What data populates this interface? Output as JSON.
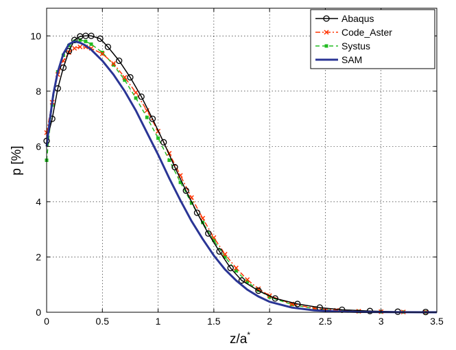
{
  "chart_data": {
    "type": "line",
    "xlabel": "z/a",
    "xlabel_superscript": "*",
    "ylabel": "p [%]",
    "xlim": [
      0,
      3.5
    ],
    "ylim": [
      0,
      11
    ],
    "xticks": [
      0,
      0.5,
      1,
      1.5,
      2,
      2.5,
      3,
      3.5
    ],
    "yticks": [
      0,
      2,
      4,
      6,
      8,
      10
    ],
    "grid": true,
    "legend_position": "top-right",
    "series": [
      {
        "name": "Abaqus",
        "color": "#000000",
        "marker": "circle",
        "line": "solid",
        "x": [
          0,
          0.05,
          0.1,
          0.15,
          0.2,
          0.25,
          0.3,
          0.35,
          0.4,
          0.48,
          0.55,
          0.65,
          0.75,
          0.85,
          0.95,
          1.05,
          1.15,
          1.25,
          1.35,
          1.45,
          1.55,
          1.65,
          1.75,
          1.9,
          2.05,
          2.25,
          2.45,
          2.65,
          2.9,
          3.15,
          3.4
        ],
        "y": [
          6.2,
          7.0,
          8.1,
          8.85,
          9.45,
          9.85,
          9.98,
          10.0,
          10.0,
          9.9,
          9.6,
          9.1,
          8.5,
          7.8,
          7.0,
          6.15,
          5.25,
          4.4,
          3.6,
          2.85,
          2.2,
          1.6,
          1.15,
          0.78,
          0.5,
          0.3,
          0.17,
          0.09,
          0.045,
          0.02,
          0.01
        ]
      },
      {
        "name": "Code_Aster",
        "color": "#ff3300",
        "marker": "x",
        "line": "dash-dot",
        "x": [
          0,
          0.05,
          0.1,
          0.15,
          0.2,
          0.25,
          0.3,
          0.35,
          0.4,
          0.5,
          0.6,
          0.7,
          0.8,
          0.9,
          1.0,
          1.1,
          1.2,
          1.3,
          1.4,
          1.5,
          1.6,
          1.7,
          1.8,
          1.9,
          2.0,
          2.2,
          2.4,
          2.6,
          2.8,
          3.0,
          3.2,
          3.4
        ],
        "y": [
          6.5,
          7.6,
          8.6,
          9.1,
          9.4,
          9.55,
          9.6,
          9.6,
          9.55,
          9.35,
          9.0,
          8.5,
          7.95,
          7.3,
          6.55,
          5.75,
          4.95,
          4.15,
          3.4,
          2.7,
          2.1,
          1.6,
          1.18,
          0.85,
          0.6,
          0.3,
          0.14,
          0.07,
          0.035,
          0.02,
          0.01,
          0.005
        ]
      },
      {
        "name": "Systus",
        "color": "#22bb22",
        "marker": "square",
        "line": "dashed",
        "x": [
          0,
          0.05,
          0.1,
          0.15,
          0.2,
          0.25,
          0.3,
          0.35,
          0.4,
          0.5,
          0.6,
          0.7,
          0.8,
          0.9,
          1.0,
          1.1,
          1.2,
          1.3,
          1.4,
          1.5,
          1.6,
          1.7,
          1.8,
          1.9,
          2.0,
          2.2,
          2.4,
          2.6,
          2.8,
          3.0,
          3.2,
          3.4
        ],
        "y": [
          5.5,
          7.5,
          8.7,
          9.3,
          9.65,
          9.8,
          9.85,
          9.8,
          9.7,
          9.4,
          8.95,
          8.4,
          7.75,
          7.05,
          6.3,
          5.5,
          4.7,
          3.95,
          3.25,
          2.6,
          2.0,
          1.5,
          1.1,
          0.8,
          0.55,
          0.28,
          0.13,
          0.06,
          0.03,
          0.015,
          0.008,
          0.004
        ]
      },
      {
        "name": "SAM",
        "color": "#2a3595",
        "marker": "none",
        "line": "solid",
        "x": [
          0,
          0.03,
          0.06,
          0.1,
          0.15,
          0.2,
          0.25,
          0.3,
          0.35,
          0.4,
          0.5,
          0.6,
          0.7,
          0.8,
          0.9,
          1.0,
          1.1,
          1.2,
          1.3,
          1.4,
          1.5,
          1.6,
          1.7,
          1.8,
          1.9,
          2.0,
          2.2,
          2.4,
          2.6,
          2.8,
          3.0,
          3.2,
          3.4,
          3.5
        ],
        "y": [
          6.0,
          7.0,
          7.9,
          8.7,
          9.35,
          9.7,
          9.8,
          9.75,
          9.65,
          9.5,
          9.1,
          8.6,
          8.0,
          7.3,
          6.5,
          5.7,
          4.85,
          4.05,
          3.3,
          2.65,
          2.05,
          1.55,
          1.15,
          0.82,
          0.57,
          0.38,
          0.17,
          0.07,
          0.03,
          0.012,
          0.005,
          0.002,
          0.001,
          0.0005
        ]
      }
    ]
  }
}
